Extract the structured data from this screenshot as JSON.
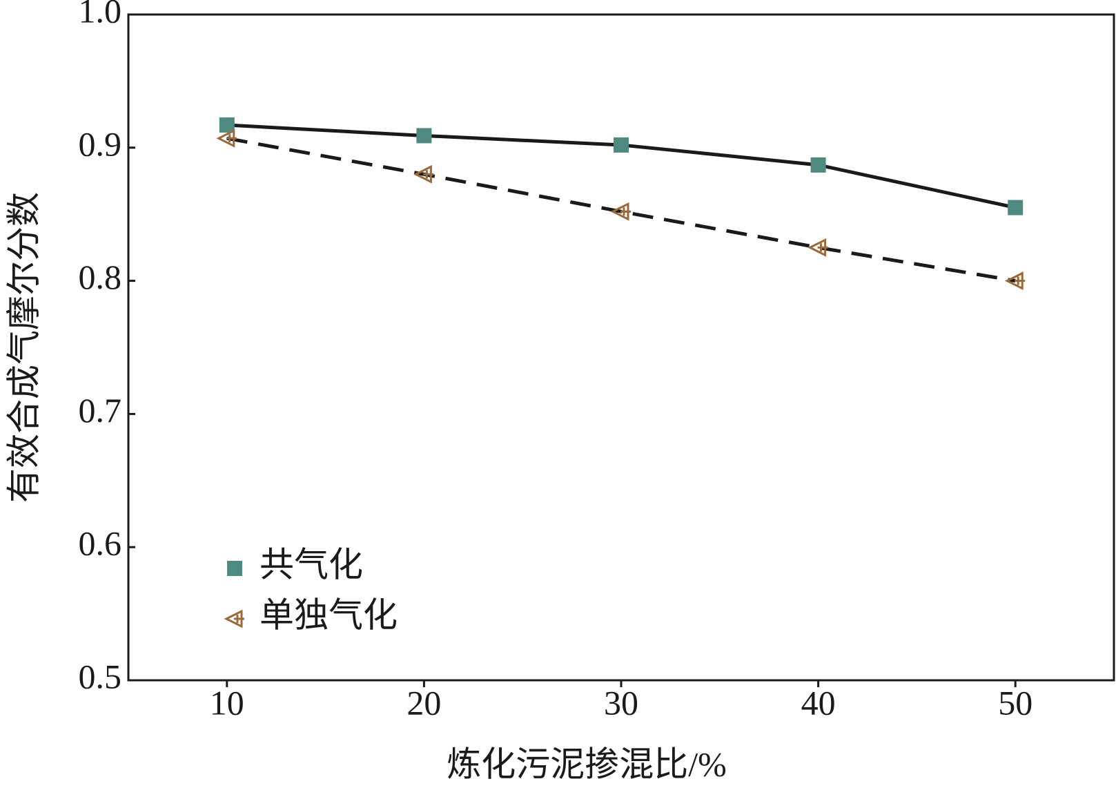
{
  "chart_data": {
    "type": "line",
    "x_label": "炼化污泥掺混比/%",
    "y_label": "有效合成气摩尔分数",
    "x": [
      10,
      20,
      30,
      40,
      50
    ],
    "series": [
      {
        "name": "共气化",
        "color": "#4f8a80",
        "line_color": "#1a1a1a",
        "line_style": "solid",
        "marker": "square",
        "values": [
          0.917,
          0.909,
          0.902,
          0.887,
          0.855
        ]
      },
      {
        "name": "单独气化",
        "color": "#9a6a3a",
        "line_color": "#1a1a1a",
        "line_style": "dashed",
        "marker": "triangle-left",
        "values": [
          0.907,
          0.88,
          0.852,
          0.825,
          0.8
        ]
      }
    ],
    "xlim": [
      5,
      55
    ],
    "xticks": [
      10,
      20,
      30,
      40,
      50
    ],
    "ylim": [
      0.5,
      1.0
    ],
    "yticks": [
      {
        "value": 0.5,
        "label": "0.5"
      },
      {
        "value": 0.6,
        "label": "0.6"
      },
      {
        "value": 0.7,
        "label": "0.7"
      },
      {
        "value": 0.8,
        "label": "0.8"
      },
      {
        "value": 0.9,
        "label": "0.9"
      },
      {
        "value": 1.0,
        "label": "1.0"
      }
    ],
    "grid": false,
    "legend": "lower left"
  }
}
